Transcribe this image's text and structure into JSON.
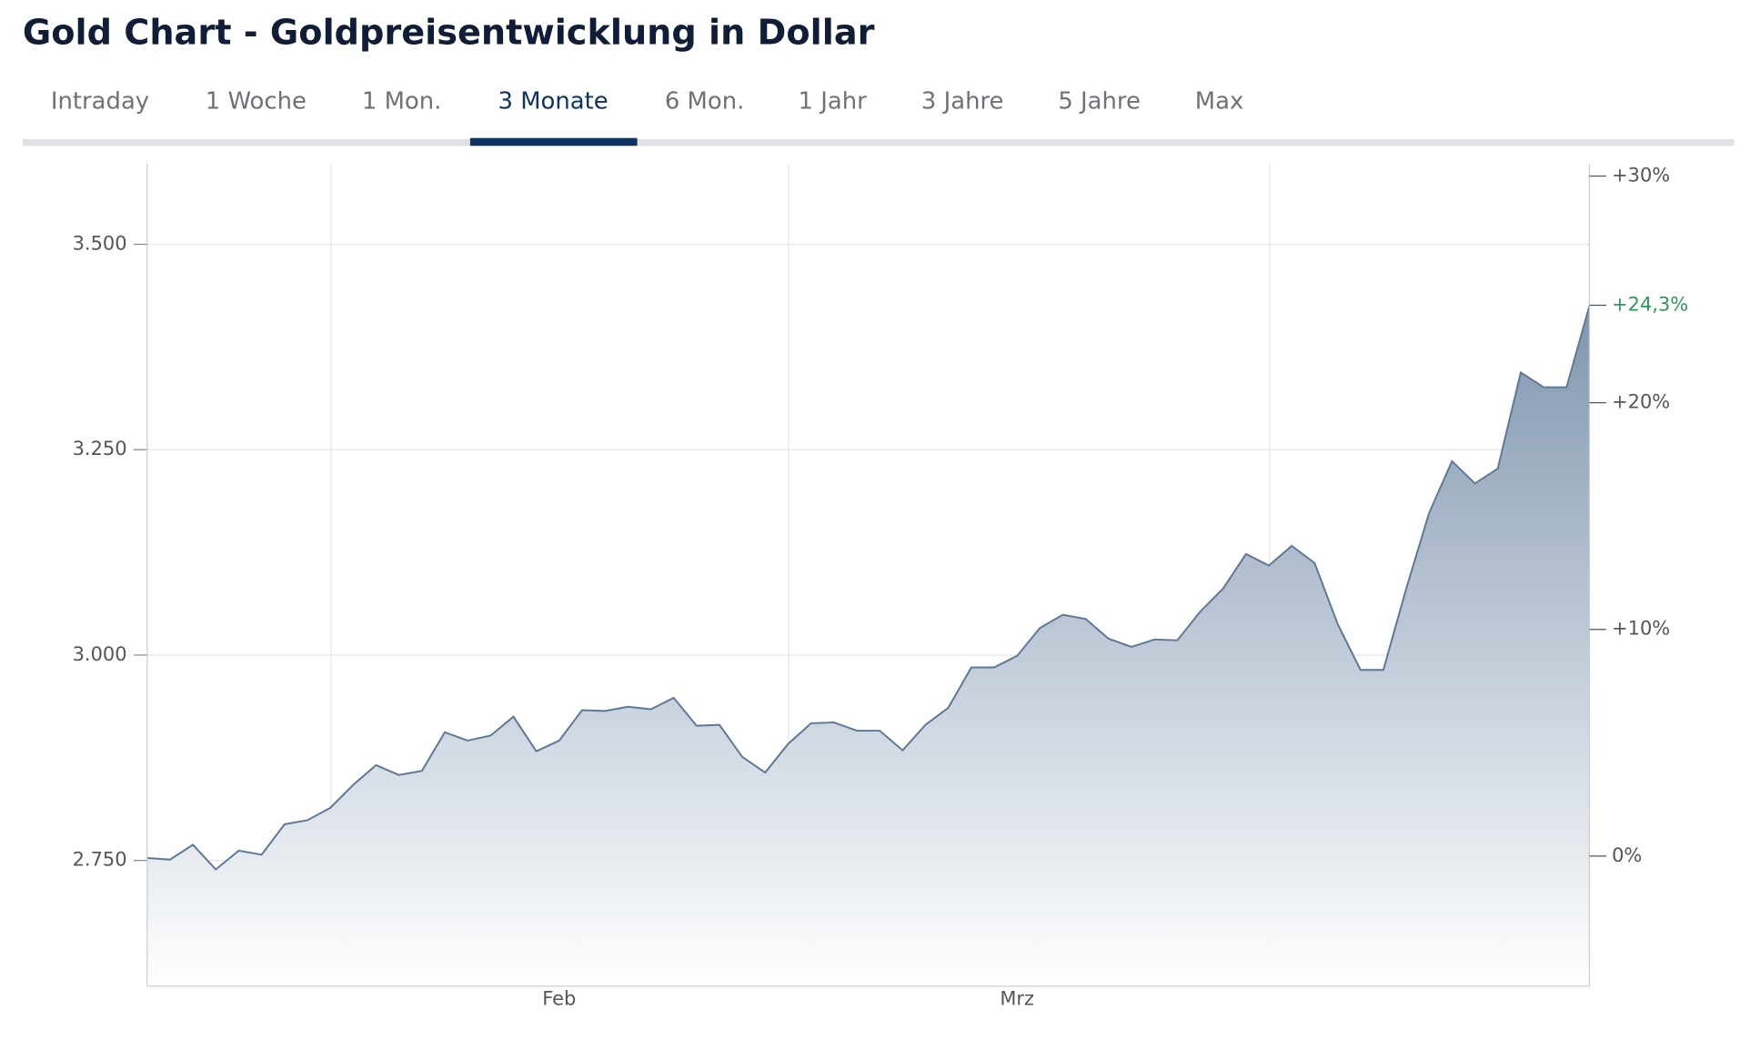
{
  "header": {
    "title": "Gold Chart - Goldpreisentwicklung in Dollar"
  },
  "tabs": {
    "items": [
      "Intraday",
      "1 Woche",
      "1 Mon.",
      "3 Monate",
      "6 Mon.",
      "1 Jahr",
      "3 Jahre",
      "5 Jahre",
      "Max"
    ],
    "active": 3
  },
  "chart_data": {
    "type": "area",
    "categories": [
      null,
      null,
      null,
      null,
      null,
      null,
      null,
      null,
      null,
      null,
      null,
      null,
      null,
      null,
      null,
      null,
      null,
      null,
      "Feb",
      null,
      null,
      null,
      null,
      null,
      null,
      null,
      null,
      null,
      null,
      null,
      null,
      null,
      null,
      null,
      null,
      null,
      null,
      null,
      "Mrz",
      null,
      null,
      null,
      null,
      null,
      null,
      null,
      null,
      null,
      null,
      null,
      null,
      null,
      null,
      null,
      null,
      null,
      null,
      null,
      null,
      null,
      null,
      null,
      null,
      null
    ],
    "series": [
      {
        "name": "Gold",
        "color": "#5d7796",
        "values": [
          2753,
          2751,
          2769,
          2739,
          2762,
          2757,
          2794,
          2799,
          2814,
          2842,
          2866,
          2854,
          2859,
          2906,
          2896,
          2902,
          2925,
          2883,
          2896,
          2933,
          2932,
          2937,
          2934,
          2948,
          2914,
          2915,
          2876,
          2857,
          2892,
          2917,
          2918,
          2908,
          2908,
          2884,
          2915,
          2936,
          2985,
          2985,
          2999,
          3033,
          3049,
          3044,
          3020,
          3010,
          3019,
          3018,
          3053,
          3081,
          3123,
          3109,
          3133,
          3112,
          3038,
          2982,
          2982,
          3081,
          3173,
          3236,
          3209,
          3227,
          3344,
          3326,
          3326,
          3425
        ]
      }
    ],
    "ylim": [
      2597,
      3598
    ],
    "yticks": [
      {
        "value": 2750,
        "label": "2.750"
      },
      {
        "value": 3000,
        "label": "3.000"
      },
      {
        "value": 3250,
        "label": "3.250"
      },
      {
        "value": 3500,
        "label": "3.500"
      }
    ],
    "y2lim": [
      -5.74,
      30.54
    ],
    "y2ticks": [
      {
        "value": 0,
        "label": "0%"
      },
      {
        "value": 10,
        "label": "+10%"
      },
      {
        "value": 20,
        "label": "+20%"
      },
      {
        "value": 30,
        "label": "+30%"
      }
    ],
    "current_change": {
      "value": 24.3,
      "label": "+24,3%"
    },
    "grid": true
  }
}
